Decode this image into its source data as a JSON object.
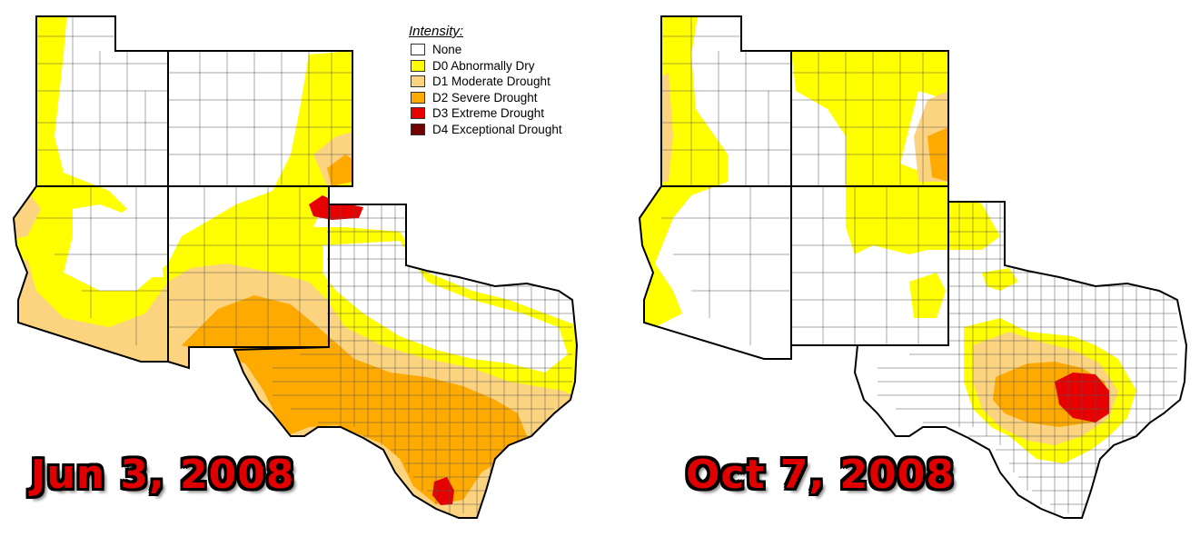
{
  "legend": {
    "title": "Intensity:",
    "items": [
      {
        "label": "None",
        "color": "#ffffff"
      },
      {
        "label": "D0 Abnormally Dry",
        "color": "#ffff00"
      },
      {
        "label": "D1 Moderate Drought",
        "color": "#fcd37f"
      },
      {
        "label": "D2 Severe Drought",
        "color": "#ffaa00"
      },
      {
        "label": "D3 Extreme Drought",
        "color": "#e60000"
      },
      {
        "label": "D4 Exceptional Drought",
        "color": "#730000"
      }
    ]
  },
  "maps": [
    {
      "date": "Jun 3, 2008"
    },
    {
      "date": "Oct 7, 2008"
    }
  ]
}
